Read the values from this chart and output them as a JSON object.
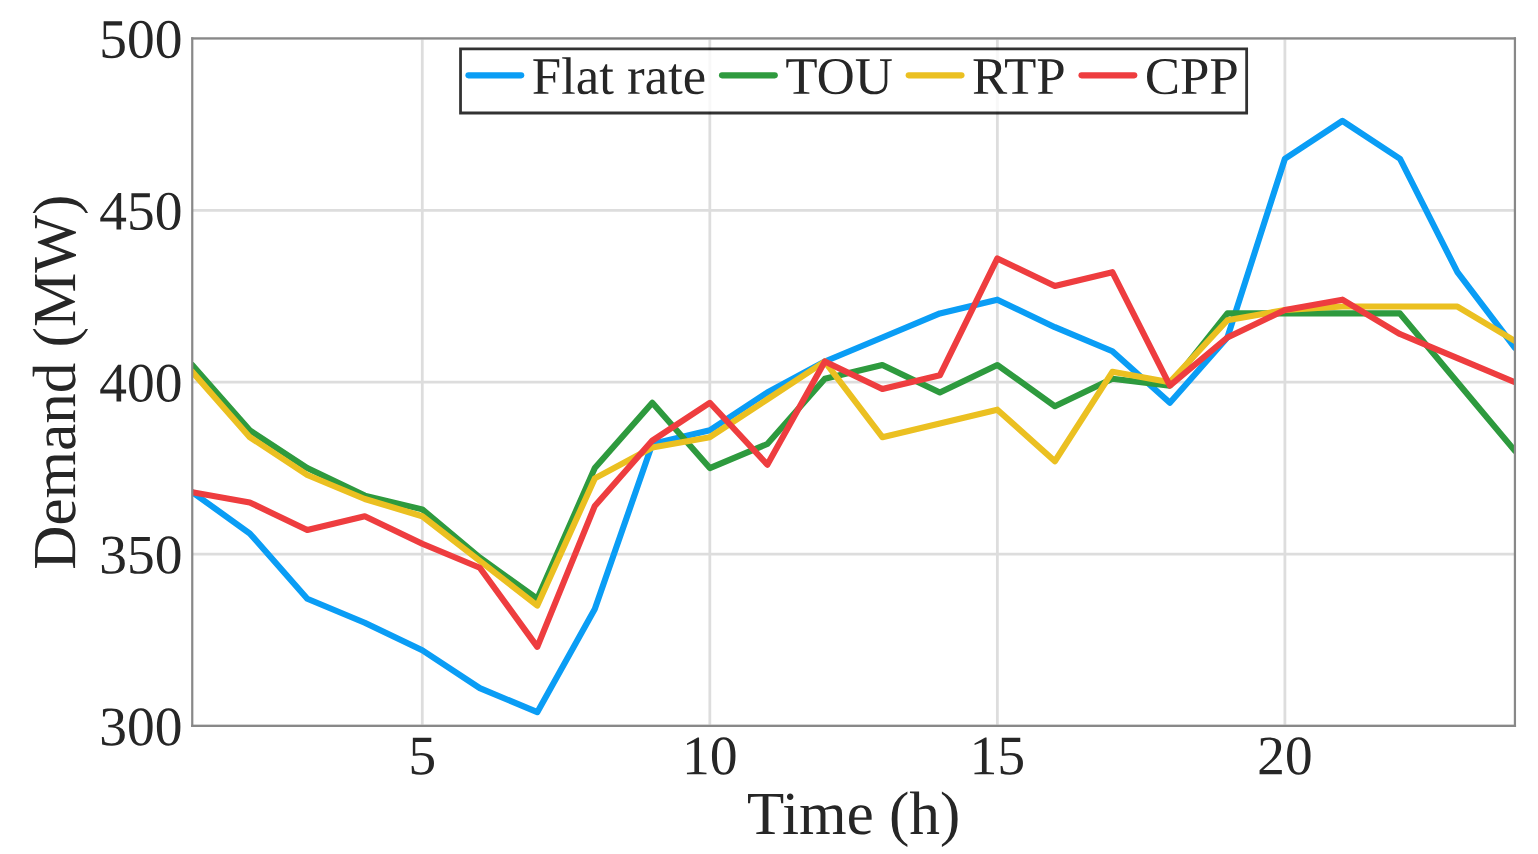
{
  "chart_data": {
    "type": "line",
    "xlabel": "Time (h)",
    "ylabel": "Demand (MW)",
    "x": [
      1,
      2,
      3,
      4,
      5,
      6,
      7,
      8,
      9,
      10,
      11,
      12,
      13,
      14,
      15,
      16,
      17,
      18,
      19,
      20,
      21,
      22,
      23,
      24
    ],
    "series": [
      {
        "name": "Flat rate",
        "color": "#0a9df5",
        "values": [
          368,
          356,
          337,
          330,
          322,
          311,
          304,
          334,
          382,
          386,
          397,
          406,
          413,
          420,
          424,
          416,
          409,
          394,
          413,
          465,
          476,
          465,
          432,
          410
        ]
      },
      {
        "name": "TOU",
        "color": "#2e9a3e",
        "values": [
          405,
          386,
          375,
          367,
          363,
          349,
          337,
          375,
          394,
          375,
          382,
          401,
          405,
          397,
          405,
          393,
          401,
          399,
          420,
          420,
          420,
          420,
          400,
          380
        ]
      },
      {
        "name": "RTP",
        "color": "#ebc021",
        "values": [
          403,
          384,
          373,
          366,
          361,
          348,
          335,
          372,
          381,
          384,
          395,
          406,
          384,
          388,
          392,
          377,
          403,
          400,
          418,
          421,
          422,
          422,
          422,
          412
        ]
      },
      {
        "name": "CPP",
        "color": "#ee3d3f",
        "values": [
          368,
          365,
          357,
          361,
          353,
          346,
          323,
          364,
          383,
          394,
          376,
          406,
          398,
          402,
          436,
          428,
          432,
          399,
          413,
          421,
          424,
          414,
          407,
          400
        ]
      }
    ],
    "xlim": [
      1,
      24
    ],
    "ylim": [
      300,
      500
    ],
    "xticks": [
      5,
      10,
      15,
      20
    ],
    "yticks": [
      300,
      350,
      400,
      450,
      500
    ],
    "grid": true,
    "legend": "top",
    "marker": "none",
    "line_style": "solid"
  }
}
